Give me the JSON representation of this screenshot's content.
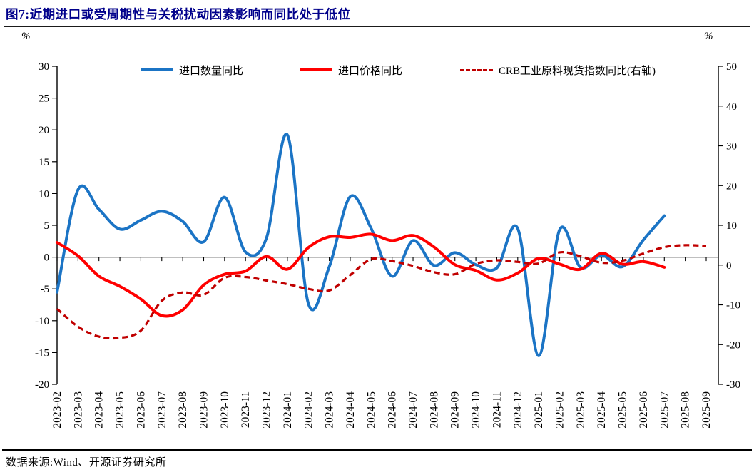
{
  "title": "图7:近期进口或受周期性与关税扰动因素影响而同比处于低位",
  "title_color": "#00008B",
  "source": "数据来源:Wind、开源证券研究所",
  "axes": {
    "left_unit": "%",
    "right_unit": "%"
  },
  "chart_data": {
    "type": "line",
    "title": "图7:近期进口或受周期性与关税扰动因素影响而同比处于低位",
    "legend_position": "top",
    "grid": false,
    "x_labels": [
      "2023-02",
      "2023-03",
      "2023-04",
      "2023-05",
      "2023-06",
      "2023-07",
      "2023-08",
      "2023-09",
      "2023-10",
      "2023-11",
      "2023-12",
      "2024-01",
      "2024-02",
      "2024-03",
      "2024-04",
      "2024-05",
      "2024-06",
      "2024-07",
      "2024-08",
      "2024-09",
      "2024-10",
      "2024-11",
      "2024-12",
      "2025-01",
      "2025-02",
      "2025-03",
      "2025-04",
      "2025-05",
      "2025-06",
      "2025-07",
      "2025-08",
      "2025-09"
    ],
    "left_axis": {
      "min": -20,
      "max": 30,
      "ticks": [
        30,
        25,
        20,
        15,
        10,
        5,
        0,
        -5,
        -10,
        -15,
        -20
      ]
    },
    "right_axis": {
      "min": -30,
      "max": 50,
      "ticks": [
        50,
        40,
        30,
        20,
        10,
        0,
        -10,
        -20,
        -30
      ]
    },
    "series": [
      {
        "id": "import-quantity-yoy",
        "name": "进口数量同比",
        "color": "#1B74C5",
        "style": "solid",
        "axis": "left",
        "values": [
          -5.5,
          10.6,
          7.5,
          4.4,
          5.8,
          7.2,
          5.6,
          2.4,
          9.4,
          0.8,
          3.0,
          19.2,
          -7.3,
          -1.5,
          9.5,
          4.5,
          -3.0,
          2.6,
          -1.3,
          0.7,
          -1.2,
          -1.7,
          4.5,
          -15.5,
          4.3,
          -1.6,
          0.3,
          -1.5,
          2.7,
          6.5,
          null,
          null
        ]
      },
      {
        "id": "import-price-yoy",
        "name": "进口价格同比",
        "color": "#FF0000",
        "style": "solid",
        "axis": "left",
        "values": [
          2.3,
          0.2,
          -3.0,
          -4.6,
          -6.6,
          -9.2,
          -8.3,
          -4.4,
          -2.7,
          -2.2,
          0.1,
          -1.9,
          1.5,
          3.2,
          3.1,
          3.6,
          2.6,
          3.4,
          1.6,
          -1.2,
          -2.1,
          -3.6,
          -2.5,
          -0.2,
          -1.1,
          -1.9,
          0.6,
          -1.1,
          -0.7,
          -1.6,
          null,
          null
        ]
      },
      {
        "id": "crb-raw-materials-spot-index-yoy",
        "name": "CRB工业原料现货指数同比(右轴)",
        "color": "#C00000",
        "style": "dashed",
        "axis": "right",
        "values": [
          -11.0,
          -15.5,
          -18.0,
          -18.3,
          -16.5,
          -9.0,
          -6.9,
          -7.5,
          -3.2,
          -3.0,
          -3.9,
          -4.8,
          -6.0,
          -6.4,
          -2.5,
          1.5,
          1.0,
          -0.2,
          -1.8,
          -2.3,
          0.3,
          1.2,
          0.8,
          0.4,
          3.2,
          2.2,
          0.6,
          1.1,
          2.9,
          4.5,
          5.0,
          4.8
        ]
      }
    ]
  }
}
